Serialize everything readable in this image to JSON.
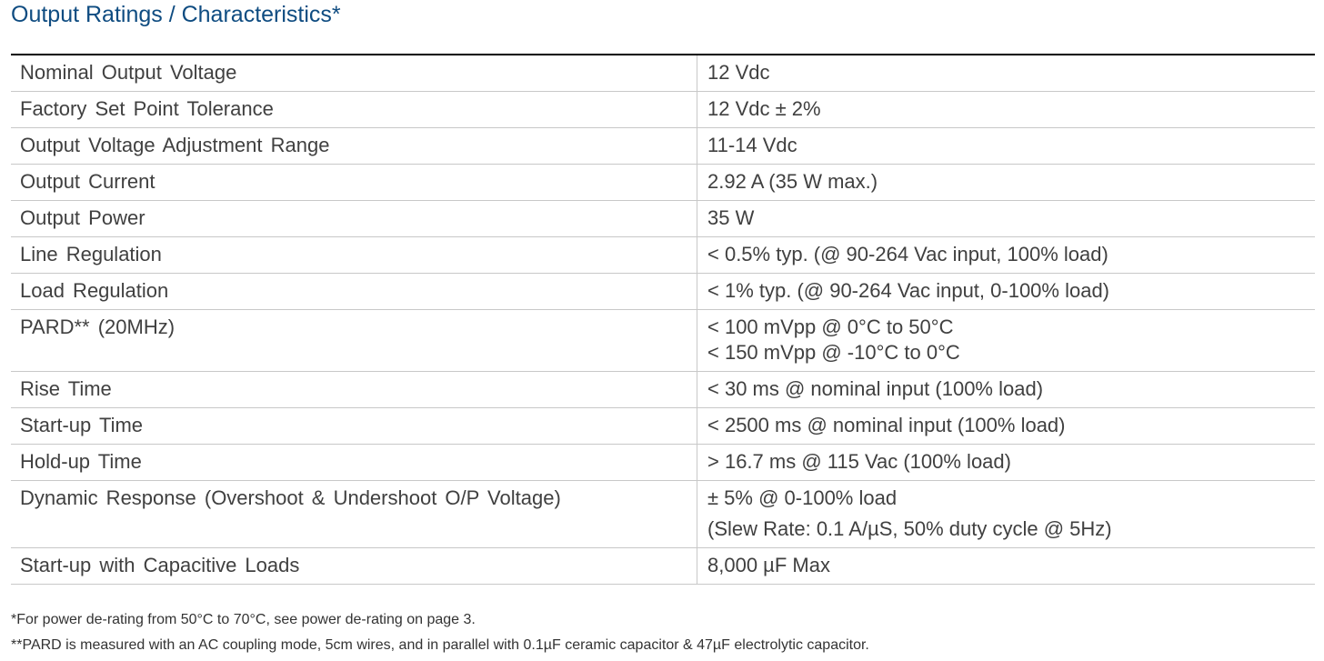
{
  "title": "Output Ratings / Characteristics*",
  "table": {
    "rows": [
      {
        "parameter": "Nominal Output Voltage",
        "value": [
          "12 Vdc"
        ]
      },
      {
        "parameter": "Factory Set Point Tolerance",
        "value": [
          "12 Vdc ± 2%"
        ]
      },
      {
        "parameter": "Output Voltage Adjustment Range",
        "value": [
          "11-14 Vdc"
        ]
      },
      {
        "parameter": "Output Current",
        "value": [
          "2.92 A (35 W max.)"
        ]
      },
      {
        "parameter": "Output Power",
        "value": [
          "35 W"
        ]
      },
      {
        "parameter": "Line Regulation",
        "value": [
          "< 0.5% typ. (@ 90-264 Vac input, 100% load)"
        ]
      },
      {
        "parameter": "Load Regulation",
        "value": [
          "< 1% typ. (@ 90-264 Vac input, 0-100% load)"
        ]
      },
      {
        "parameter": "PARD** (20MHz)",
        "value": [
          "< 100 mVpp @ 0°C to 50°C",
          "< 150 mVpp @ -10°C to 0°C"
        ]
      },
      {
        "parameter": "Rise Time",
        "value": [
          "< 30 ms @ nominal input (100% load)"
        ]
      },
      {
        "parameter": "Start-up Time",
        "value": [
          "< 2500 ms @ nominal input (100% load)"
        ]
      },
      {
        "parameter": "Hold-up Time",
        "value": [
          "> 16.7 ms @ 115 Vac (100% load)"
        ]
      },
      {
        "parameter": "Dynamic Response (Overshoot & Undershoot O/P Voltage)",
        "value": [
          "± 5% @ 0-100% load",
          "(Slew Rate: 0.1 A/µS, 50% duty cycle @ 5Hz)"
        ]
      },
      {
        "parameter": "Start-up with Capacitive Loads",
        "value": [
          "8,000 µF Max"
        ]
      }
    ]
  },
  "notes": [
    "*For power de-rating from 50°C to 70°C, see power de-rating on page 3.",
    "**PARD is measured with an AC coupling mode, 5cm wires, and in parallel with 0.1µF ceramic capacitor & 47µF electrolytic capacitor."
  ],
  "colors": {
    "title": "#0f4c81",
    "text": "#404040",
    "rule": "#000000",
    "grid": "#c8c8c8"
  }
}
